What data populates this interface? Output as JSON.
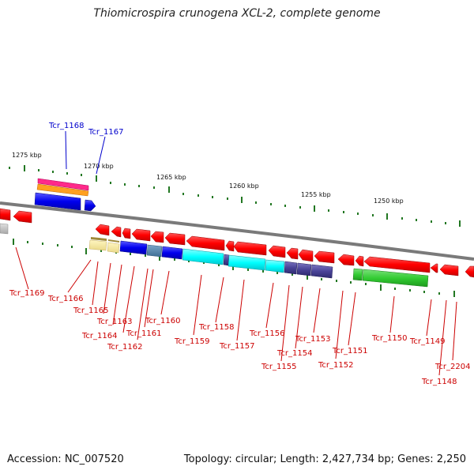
{
  "title": "Thiomicrospira crunogena XCL-2, complete genome",
  "footer": {
    "accession": "Accession: NC_007520",
    "summary": "Topology: circular; Length: 2,427,734 bp; Genes: 2,250"
  },
  "colors": {
    "backbone": "#808080",
    "gene_red": "#ff0000",
    "label_red": "#cc0000",
    "label_blue": "#0000cc",
    "tick_green": "#227722"
  },
  "kbp_labels": [
    "1275 kbp",
    "1270 kbp",
    "1265 kbp",
    "1260 kbp",
    "1255 kbp",
    "1250 kbp"
  ],
  "gene_labels": {
    "top": [
      "Tcr_1168",
      "Tcr_1167"
    ],
    "bottom": [
      "Tcr_1169",
      "Tcr_1166",
      "Tcr_1165",
      "Tcr_1163",
      "Tcr_1164",
      "Tcr_1162",
      "Tcr_1161",
      "Tcr_1160",
      "Tcr_1159",
      "Tcr_1158",
      "Tcr_1157",
      "Tcr_1156",
      "Tcr_1155",
      "Tcr_1154",
      "Tcr_1153",
      "Tcr_1152",
      "Tcr_1151",
      "Tcr_1150",
      "Tcr_1149",
      "Tcr_1148",
      "Tcr_2204"
    ]
  }
}
